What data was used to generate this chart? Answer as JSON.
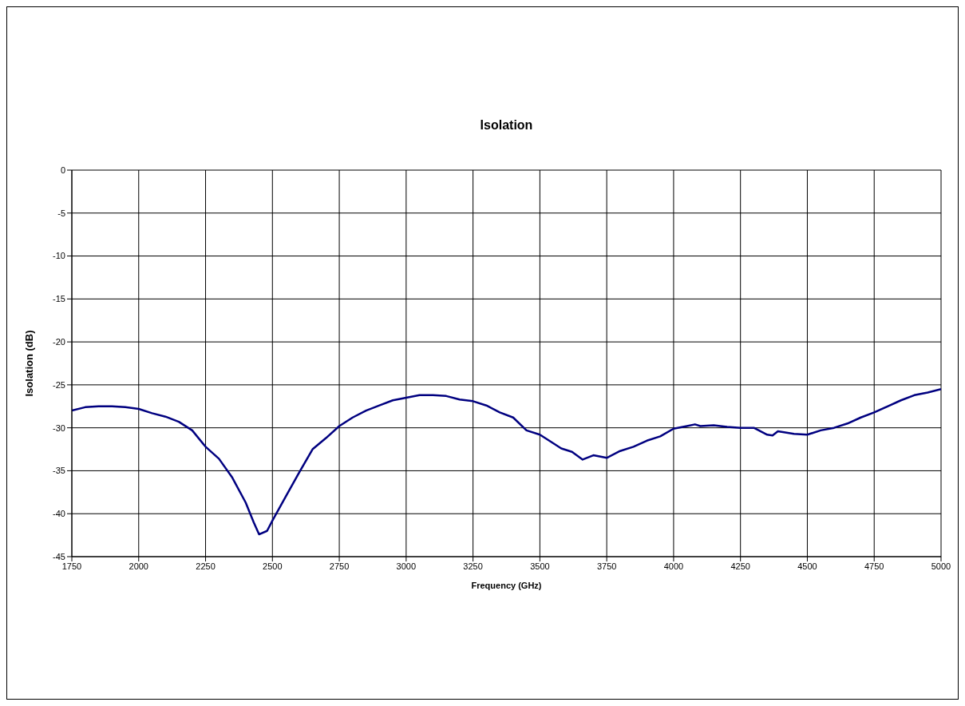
{
  "chart_data": {
    "type": "line",
    "title": "Isolation",
    "xlabel": "Frequency (GHz)",
    "ylabel": "Isolation (dB)",
    "xlim": [
      1750,
      5000
    ],
    "xticks": [
      1750,
      2000,
      2250,
      2500,
      2750,
      3000,
      3250,
      3500,
      3750,
      4000,
      4250,
      4500,
      4750,
      5000
    ],
    "ylim": [
      -45,
      0
    ],
    "yticks": [
      -45,
      -40,
      -35,
      -30,
      -25,
      -20,
      -15,
      -10,
      -5,
      0
    ],
    "grid": true,
    "legend": false,
    "marker": "none",
    "line_style": "solid",
    "x": [
      1750,
      1800,
      1850,
      1900,
      1950,
      2000,
      2050,
      2100,
      2150,
      2200,
      2250,
      2300,
      2350,
      2400,
      2430,
      2450,
      2480,
      2500,
      2550,
      2600,
      2650,
      2700,
      2750,
      2800,
      2850,
      2900,
      2950,
      3000,
      3050,
      3100,
      3150,
      3200,
      3250,
      3300,
      3350,
      3400,
      3450,
      3500,
      3550,
      3580,
      3620,
      3660,
      3700,
      3750,
      3800,
      3850,
      3900,
      3950,
      4000,
      4050,
      4080,
      4100,
      4150,
      4200,
      4250,
      4300,
      4350,
      4370,
      4390,
      4450,
      4500,
      4550,
      4600,
      4650,
      4700,
      4750,
      4800,
      4850,
      4900,
      4950,
      5000
    ],
    "series": [
      {
        "color": "#000080",
        "values": [
          -28.0,
          -27.6,
          -27.5,
          -27.5,
          -27.6,
          -27.8,
          -28.3,
          -28.7,
          -29.3,
          -30.3,
          -32.2,
          -33.6,
          -35.8,
          -38.7,
          -41,
          -42.4,
          -42,
          -40.8,
          -38,
          -35.2,
          -32.5,
          -31.2,
          -29.8,
          -28.8,
          -28,
          -27.4,
          -26.8,
          -26.5,
          -26.2,
          -26.2,
          -26.3,
          -26.7,
          -26.9,
          -27.4,
          -28.2,
          -28.8,
          -30.3,
          -30.8,
          -31.8,
          -32.4,
          -32.8,
          -33.7,
          -33.2,
          -33.5,
          -32.7,
          -32.2,
          -31.5,
          -31,
          -30.1,
          -29.8,
          -29.6,
          -29.8,
          -29.7,
          -29.9,
          -30,
          -30,
          -30.8,
          -30.9,
          -30.4,
          -30.7,
          -30.8,
          -30.3,
          -30,
          -29.5,
          -28.8,
          -28.2,
          -27.5,
          -26.8,
          -26.2,
          -25.9,
          -25.5
        ]
      }
    ]
  }
}
